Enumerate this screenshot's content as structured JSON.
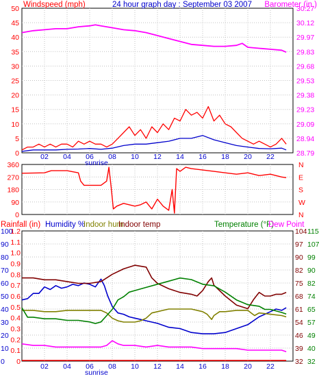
{
  "header": {
    "left_label": "Windspeed (mph)",
    "title": "24 hour graph day : September 03 2007",
    "right_label": "Barometer (in.)"
  },
  "colors": {
    "red": "#ff0000",
    "blue": "#0000cc",
    "magenta": "#ff00ff",
    "green": "#008000",
    "olive": "#808000",
    "maroon": "#800000",
    "grid": "#c0c0c0"
  },
  "x_axis": {
    "ticks": [
      "02",
      "04",
      "06",
      "08",
      "10",
      "12",
      "14",
      "16",
      "18",
      "20",
      "22"
    ],
    "sunrise_label": "sunrise"
  },
  "panel3_headers": {
    "rainfall": "Rainfall (in)",
    "humidity": "Humidity %",
    "indoor_hum": "Indoor hum",
    "indoor_temp": "Indoor temp",
    "temperature": "Temperature (°F)",
    "dew_point": "Dew Point"
  },
  "chart_data": [
    {
      "type": "line",
      "title": "24 hour graph day : September 03 2007",
      "xlabel": "",
      "x_range_hours": [
        0,
        24
      ],
      "y_left": {
        "label": "Windspeed (mph)",
        "ticks": [
          "0",
          "5",
          "10",
          "15",
          "20",
          "25",
          "30",
          "35",
          "40",
          "45",
          "50"
        ],
        "ylim": [
          0,
          50
        ]
      },
      "y_right": {
        "label": "Barometer (in.)",
        "ticks": [
          "28.79",
          "28.94",
          "29.09",
          "29.23",
          "29.38",
          "29.53",
          "29.68",
          "29.83",
          "29.97",
          "30.12",
          "30.27"
        ],
        "ylim": [
          28.79,
          30.27
        ]
      },
      "series": [
        {
          "name": "Windspeed (mph)",
          "color": "#ff0000",
          "axis": "left",
          "x": [
            0,
            0.5,
            1,
            1.5,
            2,
            2.5,
            3,
            3.5,
            4,
            4.5,
            5,
            5.5,
            6,
            6.5,
            7,
            7.5,
            8,
            8.5,
            9,
            9.5,
            10,
            10.5,
            11,
            11.5,
            12,
            12.5,
            13,
            13.5,
            14,
            14.5,
            15,
            15.5,
            16,
            16.5,
            17,
            17.5,
            18,
            18.5,
            19,
            19.5,
            20,
            20.5,
            21,
            21.5,
            22,
            22.5,
            23,
            23.4
          ],
          "values": [
            1,
            2,
            2,
            3,
            2,
            3,
            2,
            3,
            3,
            2,
            4,
            3,
            4,
            3,
            3,
            2,
            3,
            5,
            7,
            9,
            6,
            8,
            5,
            9,
            7,
            10,
            8,
            12,
            11,
            15,
            13,
            14,
            12,
            16,
            11,
            13,
            10,
            9,
            7,
            5,
            4,
            3,
            4,
            3,
            2,
            3,
            5,
            3
          ]
        },
        {
          "name": "Wind (blue)",
          "color": "#0000cc",
          "axis": "left",
          "x": [
            0,
            1,
            2,
            3,
            4,
            5,
            6,
            7,
            8,
            9,
            10,
            11,
            12,
            13,
            14,
            15,
            16,
            17,
            18,
            19,
            20,
            21,
            22,
            23,
            23.4
          ],
          "values": [
            0.5,
            1,
            1,
            1,
            1.2,
            1.3,
            1.5,
            1.2,
            1.6,
            2.5,
            3,
            3,
            3.5,
            4,
            5,
            5,
            6,
            4.5,
            3.5,
            2.5,
            2,
            1.5,
            1.4,
            1.6,
            1
          ]
        },
        {
          "name": "Barometer (in.)",
          "color": "#ff00ff",
          "axis": "right",
          "x": [
            0,
            1,
            2,
            3,
            4,
            5,
            6,
            6.5,
            7,
            8,
            9,
            10,
            11,
            12,
            13,
            14,
            15,
            16,
            17,
            18,
            19,
            19.5,
            20,
            21,
            22,
            23,
            23.4
          ],
          "values": [
            30.02,
            30.04,
            30.05,
            30.06,
            30.06,
            30.08,
            30.09,
            30.1,
            30.09,
            30.07,
            30.05,
            30.04,
            30.02,
            29.99,
            29.96,
            29.93,
            29.9,
            29.89,
            29.88,
            29.88,
            29.89,
            29.91,
            29.87,
            29.86,
            29.85,
            29.84,
            29.82
          ]
        }
      ],
      "grid": true
    },
    {
      "type": "line",
      "title": "",
      "x_range_hours": [
        0,
        24
      ],
      "y_left": {
        "label": "",
        "ticks": [
          "0",
          "90",
          "180",
          "270",
          "360"
        ],
        "ylim": [
          0,
          360
        ]
      },
      "y_right": {
        "label": "",
        "ticks": [
          "N",
          "W",
          "S",
          "E",
          "N"
        ]
      },
      "series": [
        {
          "name": "Wind direction",
          "color": "#ff0000",
          "x": [
            0,
            2,
            2.6,
            4,
            5,
            5.2,
            5.5,
            6,
            7,
            7.5,
            7.7,
            7.9,
            8.1,
            8.4,
            9,
            10,
            10.5,
            11,
            11.5,
            12,
            12.5,
            13,
            13.3,
            13.5,
            13.7,
            14,
            14.5,
            15,
            16,
            17,
            18,
            19,
            20,
            21,
            22,
            23,
            23.4
          ],
          "values": [
            297,
            300,
            315,
            315,
            300,
            240,
            210,
            210,
            210,
            240,
            340,
            200,
            40,
            60,
            80,
            60,
            70,
            90,
            40,
            110,
            60,
            30,
            180,
            10,
            330,
            310,
            340,
            330,
            320,
            310,
            300,
            290,
            300,
            280,
            290,
            270,
            265
          ]
        }
      ],
      "grid": true
    },
    {
      "type": "line",
      "title": "",
      "x_range_hours": [
        0,
        24
      ],
      "y_left_axes": [
        {
          "label": "Rainfall (in)",
          "ticks": [
            "0",
            "0.1",
            "0.2",
            "0.3",
            "0.4",
            "0.5",
            "0.6",
            "0.7",
            "0.8",
            "0.9",
            "1.0",
            "1.1",
            "1.2"
          ],
          "ylim": [
            0,
            1.2
          ]
        },
        {
          "label": "Humidity %",
          "ticks": [
            "0",
            "10",
            "20",
            "30",
            "40",
            "50",
            "60",
            "70",
            "80",
            "90",
            "100"
          ],
          "ylim": [
            0,
            100
          ]
        }
      ],
      "y_right_axes": [
        {
          "label": "",
          "ticks": [
            "32",
            "39",
            "46",
            "54",
            "61",
            "68",
            "75",
            "82",
            "90",
            "97",
            "104"
          ],
          "ylim": [
            32,
            104
          ]
        },
        {
          "label": "",
          "ticks": [
            "32",
            "40",
            "49",
            "57",
            "65",
            "74",
            "82",
            "90",
            "99",
            "107",
            "115"
          ],
          "ylim": [
            32,
            115
          ]
        }
      ],
      "series": [
        {
          "name": "Rainfall (in)",
          "color": "#ff0000",
          "axis": "rainfall",
          "x": [
            0,
            23.4
          ],
          "values": [
            0,
            0
          ]
        },
        {
          "name": "Humidity %",
          "color": "#0000cc",
          "axis": "humidity",
          "x": [
            0,
            0.5,
            1,
            1.5,
            2,
            2.5,
            3,
            3.5,
            4,
            4.5,
            5,
            5.5,
            6,
            6.5,
            7,
            7.3,
            7.6,
            8,
            8.5,
            9,
            9.5,
            10,
            10.5,
            11,
            11.5,
            12,
            13,
            14,
            15,
            16,
            17,
            18,
            19,
            20,
            21,
            21.5,
            22,
            22.5,
            23,
            23.4
          ],
          "values": [
            47,
            48,
            52,
            52,
            57,
            55,
            58,
            56,
            57,
            59,
            58,
            60,
            59,
            57,
            63,
            58,
            50,
            42,
            37,
            36,
            34,
            33,
            32,
            31,
            30,
            29,
            26,
            25,
            22,
            21,
            21,
            22,
            25,
            28,
            34,
            36,
            38,
            40,
            39,
            41
          ]
        },
        {
          "name": "Indoor hum",
          "color": "#808000",
          "axis": "humidity",
          "x": [
            0,
            1,
            2,
            3,
            4,
            5,
            6,
            7,
            7.5,
            8,
            8.5,
            9,
            10,
            10.5,
            11,
            11.5,
            12,
            12.5,
            13,
            14,
            15,
            16,
            16.4,
            16.8,
            17,
            17.5,
            18,
            19,
            20,
            20.3,
            20.6,
            21,
            22,
            23,
            23.4
          ],
          "values": [
            39,
            39,
            38,
            38,
            39,
            39,
            39,
            39,
            37,
            33,
            31,
            30,
            30,
            31,
            33,
            37,
            38,
            39,
            40,
            40,
            40,
            38,
            36,
            32,
            35,
            38,
            38,
            39,
            39,
            37,
            35,
            37,
            36,
            35,
            34
          ]
        },
        {
          "name": "Indoor temp",
          "color": "#800000",
          "axis": "indoor_temp",
          "x": [
            0,
            1,
            2,
            3,
            4,
            5,
            6,
            7,
            8,
            9,
            10,
            11,
            11.5,
            12,
            13,
            14,
            15,
            15.5,
            16,
            16.5,
            16.8,
            17,
            18,
            19,
            20,
            20.5,
            21,
            21.5,
            22,
            22.5,
            23,
            23.4
          ],
          "values": [
            78,
            78,
            77,
            77,
            76,
            75,
            75,
            76,
            80,
            83,
            85,
            84,
            78,
            75,
            72,
            70,
            69,
            68,
            71,
            76,
            78,
            74,
            68,
            63,
            61,
            66,
            70,
            68,
            68,
            69,
            69,
            70
          ]
        },
        {
          "name": "Temperature (°F)",
          "color": "#008000",
          "axis": "temperature",
          "x": [
            0,
            0.5,
            1,
            2,
            3,
            4,
            5,
            6,
            6.5,
            7,
            7.5,
            8,
            8.5,
            9,
            9.5,
            10,
            11,
            12,
            13,
            14,
            15,
            16,
            17,
            18,
            19,
            20,
            21,
            21.5,
            22,
            23,
            23.4
          ],
          "values": [
            66,
            60,
            60,
            59,
            59,
            58,
            58,
            57,
            56,
            57,
            61,
            65,
            71,
            73,
            76,
            77,
            79,
            81,
            83,
            85,
            84,
            81,
            80,
            76,
            71,
            68,
            67,
            65,
            65,
            63,
            62
          ]
        },
        {
          "name": "Dew Point",
          "color": "#ff00ff",
          "axis": "temperature",
          "x": [
            0,
            1,
            2,
            3,
            4,
            5,
            6,
            7,
            7.5,
            8,
            8.5,
            9,
            10,
            11,
            12,
            13,
            14,
            15,
            16,
            17,
            18,
            19,
            20,
            21,
            22,
            23,
            23.4
          ],
          "values": [
            43,
            42,
            42,
            41,
            41,
            41,
            41,
            41,
            42,
            45,
            43,
            42,
            42,
            41,
            42,
            41,
            41,
            41,
            40,
            40,
            40,
            40,
            39,
            39,
            39,
            39,
            38
          ]
        }
      ],
      "grid": true
    }
  ]
}
